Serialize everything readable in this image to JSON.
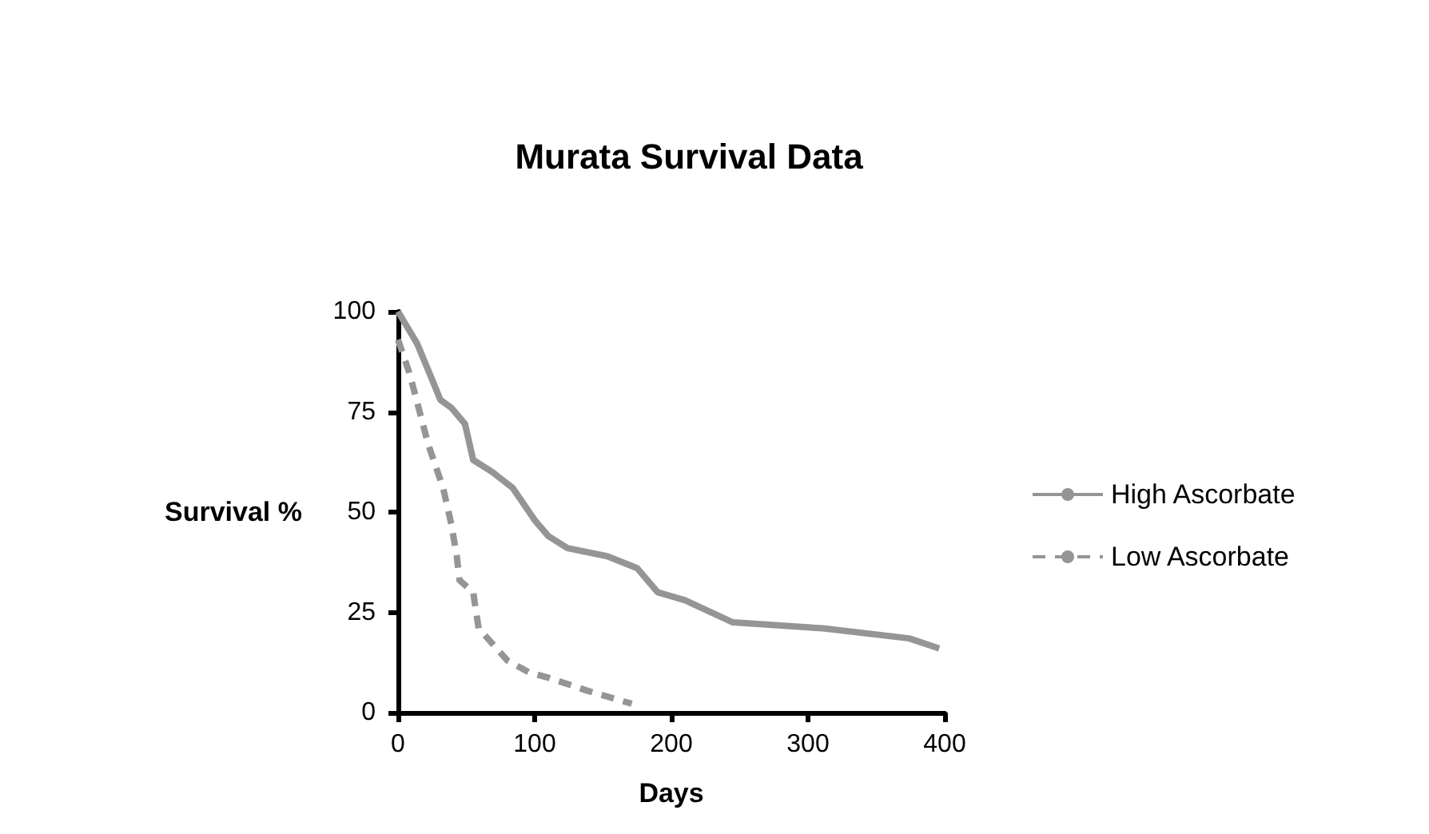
{
  "chart_data": {
    "type": "line",
    "title": "Murata Survival Data",
    "xlabel": "Days",
    "ylabel": "Survival %",
    "xlim": [
      0,
      400
    ],
    "xticks": [
      0,
      100,
      200,
      300,
      400
    ],
    "ylim": [
      0,
      100
    ],
    "yticks": [
      0,
      25,
      50,
      75,
      100
    ],
    "grid": false,
    "legend": "right",
    "marker": "none",
    "series": [
      {
        "name": "High Ascorbate",
        "color": "#959595",
        "line_style": "solid",
        "x": [
          0,
          14,
          25,
          31,
          39,
          49,
          55,
          69,
          84,
          100,
          110,
          124,
          153,
          175,
          190,
          210,
          245,
          311,
          374,
          396
        ],
        "values": [
          100,
          92,
          83,
          78,
          76,
          72,
          63,
          60,
          56,
          48,
          44,
          41,
          39,
          36,
          30,
          28,
          22.5,
          21,
          18.5,
          16
        ]
      },
      {
        "name": "Low Ascorbate",
        "color": "#959595",
        "line_style": "dashed",
        "x": [
          0,
          8,
          12,
          22,
          33,
          39,
          43,
          45,
          55,
          59,
          80,
          96,
          110,
          139,
          171
        ],
        "values": [
          93,
          85,
          80,
          67,
          56,
          47,
          39,
          33,
          30,
          21,
          13,
          10,
          8.7,
          5.4,
          2.2
        ]
      }
    ]
  }
}
